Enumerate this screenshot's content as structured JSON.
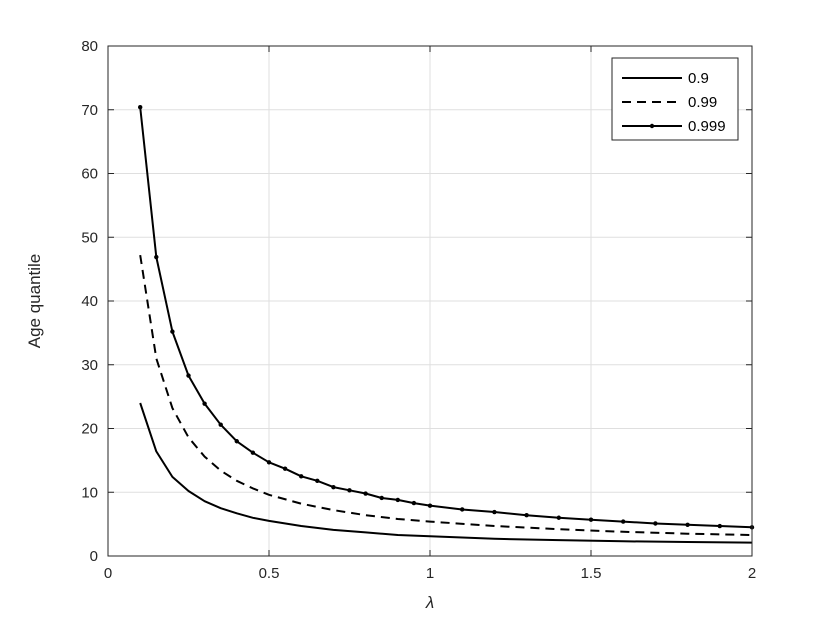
{
  "chart_data": {
    "type": "line",
    "xlabel": "λ",
    "ylabel": "Age quantile",
    "xlim": [
      0,
      2
    ],
    "ylim": [
      0,
      80
    ],
    "xticks": [
      0,
      0.5,
      1,
      1.5,
      2
    ],
    "xtick_labels": [
      "0",
      "0.5",
      "1",
      "1.5",
      "2"
    ],
    "yticks": [
      0,
      10,
      20,
      30,
      40,
      50,
      60,
      70,
      80
    ],
    "ytick_labels": [
      "0",
      "10",
      "20",
      "30",
      "40",
      "50",
      "60",
      "70",
      "80"
    ],
    "grid": true,
    "legend_position": "top-right",
    "series": [
      {
        "name": "0.9",
        "style": "solid",
        "markers": false,
        "color": "#000000",
        "x": [
          0.1,
          0.15,
          0.2,
          0.25,
          0.3,
          0.35,
          0.4,
          0.45,
          0.5,
          0.6,
          0.7,
          0.8,
          0.9,
          1.0,
          1.2,
          1.4,
          1.6,
          1.8,
          2.0
        ],
        "y": [
          24.0,
          16.4,
          12.4,
          10.2,
          8.6,
          7.5,
          6.7,
          6.0,
          5.5,
          4.7,
          4.1,
          3.7,
          3.3,
          3.1,
          2.7,
          2.5,
          2.3,
          2.2,
          2.1
        ]
      },
      {
        "name": "0.99",
        "style": "dashed",
        "markers": false,
        "color": "#000000",
        "x": [
          0.1,
          0.15,
          0.2,
          0.25,
          0.3,
          0.35,
          0.4,
          0.45,
          0.5,
          0.6,
          0.7,
          0.8,
          0.9,
          1.0,
          1.2,
          1.4,
          1.6,
          1.8,
          2.0
        ],
        "y": [
          47.2,
          31.0,
          23.2,
          18.6,
          15.6,
          13.4,
          11.8,
          10.6,
          9.6,
          8.2,
          7.2,
          6.4,
          5.8,
          5.4,
          4.7,
          4.2,
          3.8,
          3.5,
          3.3
        ]
      },
      {
        "name": "0.999",
        "style": "solid",
        "markers": true,
        "color": "#000000",
        "x": [
          0.1,
          0.15,
          0.2,
          0.25,
          0.3,
          0.35,
          0.4,
          0.45,
          0.5,
          0.55,
          0.6,
          0.65,
          0.7,
          0.75,
          0.8,
          0.85,
          0.9,
          0.95,
          1.0,
          1.1,
          1.2,
          1.3,
          1.4,
          1.5,
          1.6,
          1.7,
          1.8,
          1.9,
          2.0
        ],
        "y": [
          70.4,
          46.9,
          35.2,
          28.3,
          23.9,
          20.6,
          18.0,
          16.2,
          14.7,
          13.7,
          12.5,
          11.8,
          10.8,
          10.3,
          9.8,
          9.1,
          8.8,
          8.3,
          7.9,
          7.3,
          6.9,
          6.4,
          6.0,
          5.7,
          5.4,
          5.1,
          4.9,
          4.7,
          4.5
        ]
      }
    ]
  }
}
